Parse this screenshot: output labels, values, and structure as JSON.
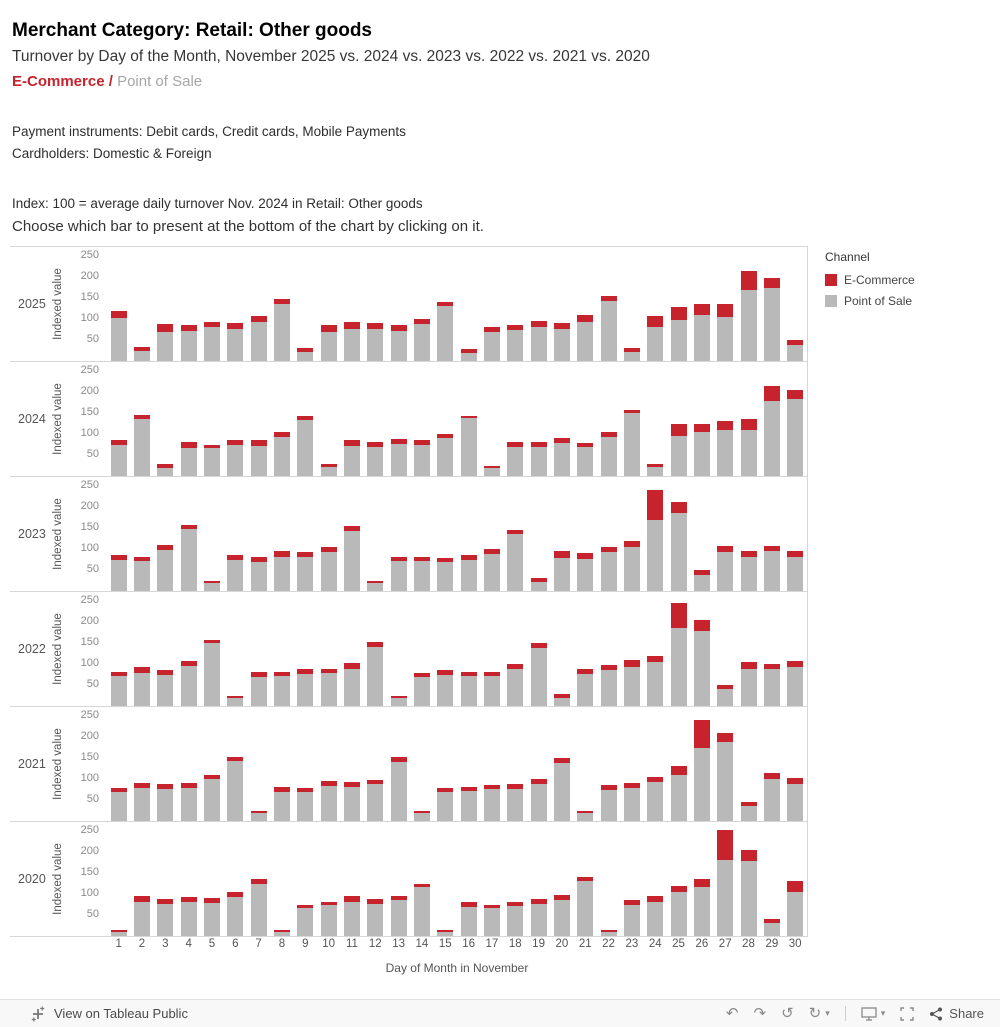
{
  "header": {
    "title": "Merchant Category: Retail: Other goods",
    "subtitle": "Turnover by Day of the Month, November 2025 vs. 2024 vs. 2023 vs. 2022 vs. 2021 vs. 2020",
    "channel_ecommerce": "E-Commerce",
    "channel_separator": " / ",
    "channel_pos": "Point of Sale",
    "payment_line": "Payment instruments: Debit cards, Credit cards, Mobile Payments",
    "cardholders_line": "Cardholders: Domestic & Foreign",
    "index_line": "Index: 100 = average daily turnover Nov. 2024 in Retail: Other goods",
    "instruction_line": "Choose which bar to present at the bottom of the chart by clicking on it."
  },
  "legend": {
    "title": "Channel",
    "entries": [
      {
        "label": "E-Commerce",
        "color": "#c7232c"
      },
      {
        "label": "Point of Sale",
        "color": "#b9b9b9"
      }
    ]
  },
  "chart_data": {
    "type": "bar",
    "stacked": true,
    "title": "Turnover by Day of the Month, November 2025 vs. 2024 vs. 2023 vs. 2022 vs. 2021 vs. 2020",
    "xlabel": "Day of Month in November",
    "ylabel": "Indexed value",
    "ylim": [
      0,
      250
    ],
    "yticks": [
      50,
      100,
      150,
      200,
      250
    ],
    "legend_position": "right",
    "grid": false,
    "colors": {
      "ecommerce": "#c7232c",
      "point_of_sale": "#b9b9b9"
    },
    "x": [
      1,
      2,
      3,
      4,
      5,
      6,
      7,
      8,
      9,
      10,
      11,
      12,
      13,
      14,
      15,
      16,
      17,
      18,
      19,
      20,
      21,
      22,
      23,
      24,
      25,
      26,
      27,
      28,
      29,
      30
    ],
    "panels": [
      {
        "year": "2025",
        "series": [
          {
            "name": "E-Commerce",
            "values": [
              15,
              10,
              18,
              14,
              12,
              14,
              14,
              12,
              10,
              16,
              16,
              14,
              13,
              12,
              10,
              9,
              13,
              11,
              13,
              13,
              16,
              12,
              11,
              26,
              30,
              26,
              30,
              45,
              22,
              13
            ]
          },
          {
            "name": "Point of Sale",
            "values": [
              103,
              23,
              70,
              71,
              80,
              76,
              94,
              136,
              22,
              69,
              76,
              76,
              72,
              88,
              130,
              19,
              69,
              74,
              82,
              77,
              94,
              143,
              21,
              82,
              98,
              109,
              105,
              170,
              175,
              37
            ]
          }
        ]
      },
      {
        "year": "2024",
        "series": [
          {
            "name": "E-Commerce",
            "values": [
              11,
              9,
              8,
              13,
              9,
              11,
              13,
              11,
              10,
              7,
              13,
              11,
              11,
              11,
              9,
              6,
              7,
              11,
              11,
              11,
              9,
              11,
              9,
              7,
              30,
              21,
              21,
              26,
              36,
              21
            ]
          },
          {
            "name": "Point of Sale",
            "values": [
              74,
              136,
              20,
              67,
              66,
              74,
              72,
              94,
              133,
              21,
              72,
              69,
              77,
              74,
              91,
              137,
              18,
              69,
              69,
              79,
              69,
              94,
              149,
              21,
              95,
              104,
              109,
              109,
              179,
              184
            ]
          }
        ]
      },
      {
        "year": "2023",
        "series": [
          {
            "name": "E-Commerce",
            "values": [
              11,
              9,
              13,
              11,
              6,
              11,
              13,
              13,
              11,
              11,
              11,
              7,
              11,
              9,
              9,
              11,
              11,
              9,
              9,
              16,
              13,
              13,
              16,
              70,
              26,
              11,
              16,
              13,
              13,
              13
            ]
          },
          {
            "name": "Point of Sale",
            "values": [
              74,
              71,
              97,
              147,
              19,
              74,
              69,
              82,
              81,
              94,
              144,
              18,
              71,
              71,
              69,
              74,
              89,
              136,
              21,
              79,
              77,
              92,
              104,
              170,
              186,
              39,
              92,
              82,
              95,
              82
            ]
          }
        ]
      },
      {
        "year": "2022",
        "series": [
          {
            "name": "E-Commerce",
            "values": [
              9,
              13,
              11,
              13,
              9,
              6,
              11,
              11,
              11,
              9,
              13,
              11,
              7,
              9,
              11,
              9,
              9,
              11,
              11,
              9,
              11,
              13,
              16,
              13,
              60,
              26,
              9,
              16,
              13,
              16
            ]
          },
          {
            "name": "Point of Sale",
            "values": [
              71,
              79,
              74,
              95,
              149,
              19,
              69,
              71,
              77,
              79,
              89,
              141,
              18,
              69,
              74,
              71,
              71,
              89,
              139,
              19,
              77,
              85,
              94,
              105,
              185,
              179,
              41,
              89,
              87,
              92
            ]
          }
        ]
      },
      {
        "year": "2021",
        "series": [
          {
            "name": "E-Commerce",
            "values": [
              9,
              11,
              11,
              11,
              11,
              9,
              6,
              11,
              9,
              11,
              11,
              11,
              11,
              7,
              9,
              9,
              9,
              11,
              11,
              13,
              7,
              11,
              11,
              13,
              21,
              65,
              21,
              9,
              16,
              13
            ]
          },
          {
            "name": "Point of Sale",
            "values": [
              69,
              79,
              77,
              79,
              99,
              143,
              19,
              69,
              69,
              84,
              81,
              87,
              141,
              18,
              69,
              71,
              76,
              77,
              89,
              137,
              18,
              74,
              79,
              92,
              109,
              175,
              189,
              36,
              99,
              89
            ]
          }
        ]
      },
      {
        "year": "2020",
        "series": [
          {
            "name": "E-Commerce",
            "values": [
              5,
              13,
              11,
              11,
              11,
              11,
              11,
              5,
              9,
              9,
              13,
              11,
              9,
              9,
              5,
              11,
              9,
              9,
              11,
              13,
              9,
              5,
              11,
              13,
              16,
              19,
              72,
              26,
              9,
              26
            ]
          },
          {
            "name": "Point of Sale",
            "values": [
              10,
              82,
              77,
              81,
              79,
              94,
              124,
              10,
              66,
              73,
              82,
              77,
              86,
              116,
              10,
              69,
              66,
              71,
              77,
              85,
              131,
              10,
              74,
              82,
              104,
              116,
              180,
              179,
              31,
              104
            ]
          }
        ]
      }
    ]
  },
  "footer": {
    "view_label": "View on Tableau Public",
    "share_label": "Share"
  }
}
